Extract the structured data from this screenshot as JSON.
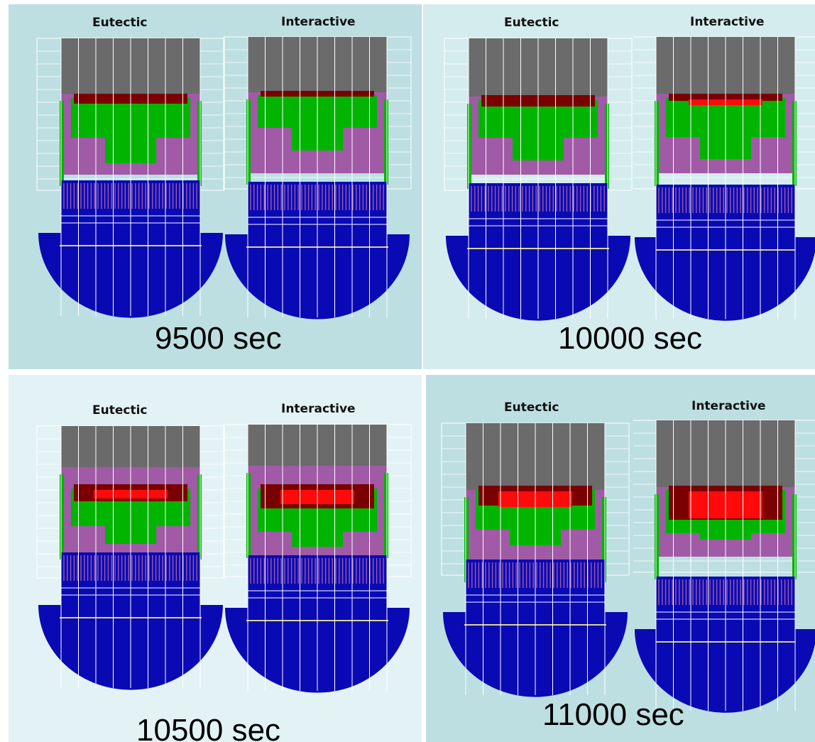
{
  "panels": [
    {
      "id": "p1",
      "time_label": "9500 sec",
      "left_title": "Eutectic",
      "right_title": "Interactive",
      "background": "#bddfe2"
    },
    {
      "id": "p2",
      "time_label": "10000 sec",
      "left_title": "Eutectic",
      "right_title": "Interactive",
      "background": "#d4ecee"
    },
    {
      "id": "p3",
      "time_label": "10500 sec",
      "left_title": "Eutectic",
      "right_title": "Interactive",
      "background": "#e3f3f5"
    },
    {
      "id": "p4",
      "time_label": "11000 sec",
      "left_title": "Eutectic",
      "right_title": "Interactive",
      "background": "#bddfe2"
    }
  ],
  "colors": {
    "crust": "#6b6b6b",
    "debris": "#a05aa6",
    "melt_dark": "#7a0000",
    "melt_red": "#ff0a0a",
    "molten": "#00b400",
    "support": "#0a0ab4",
    "grid": "#ffffff",
    "accent_yellow": "#d8d28a"
  }
}
